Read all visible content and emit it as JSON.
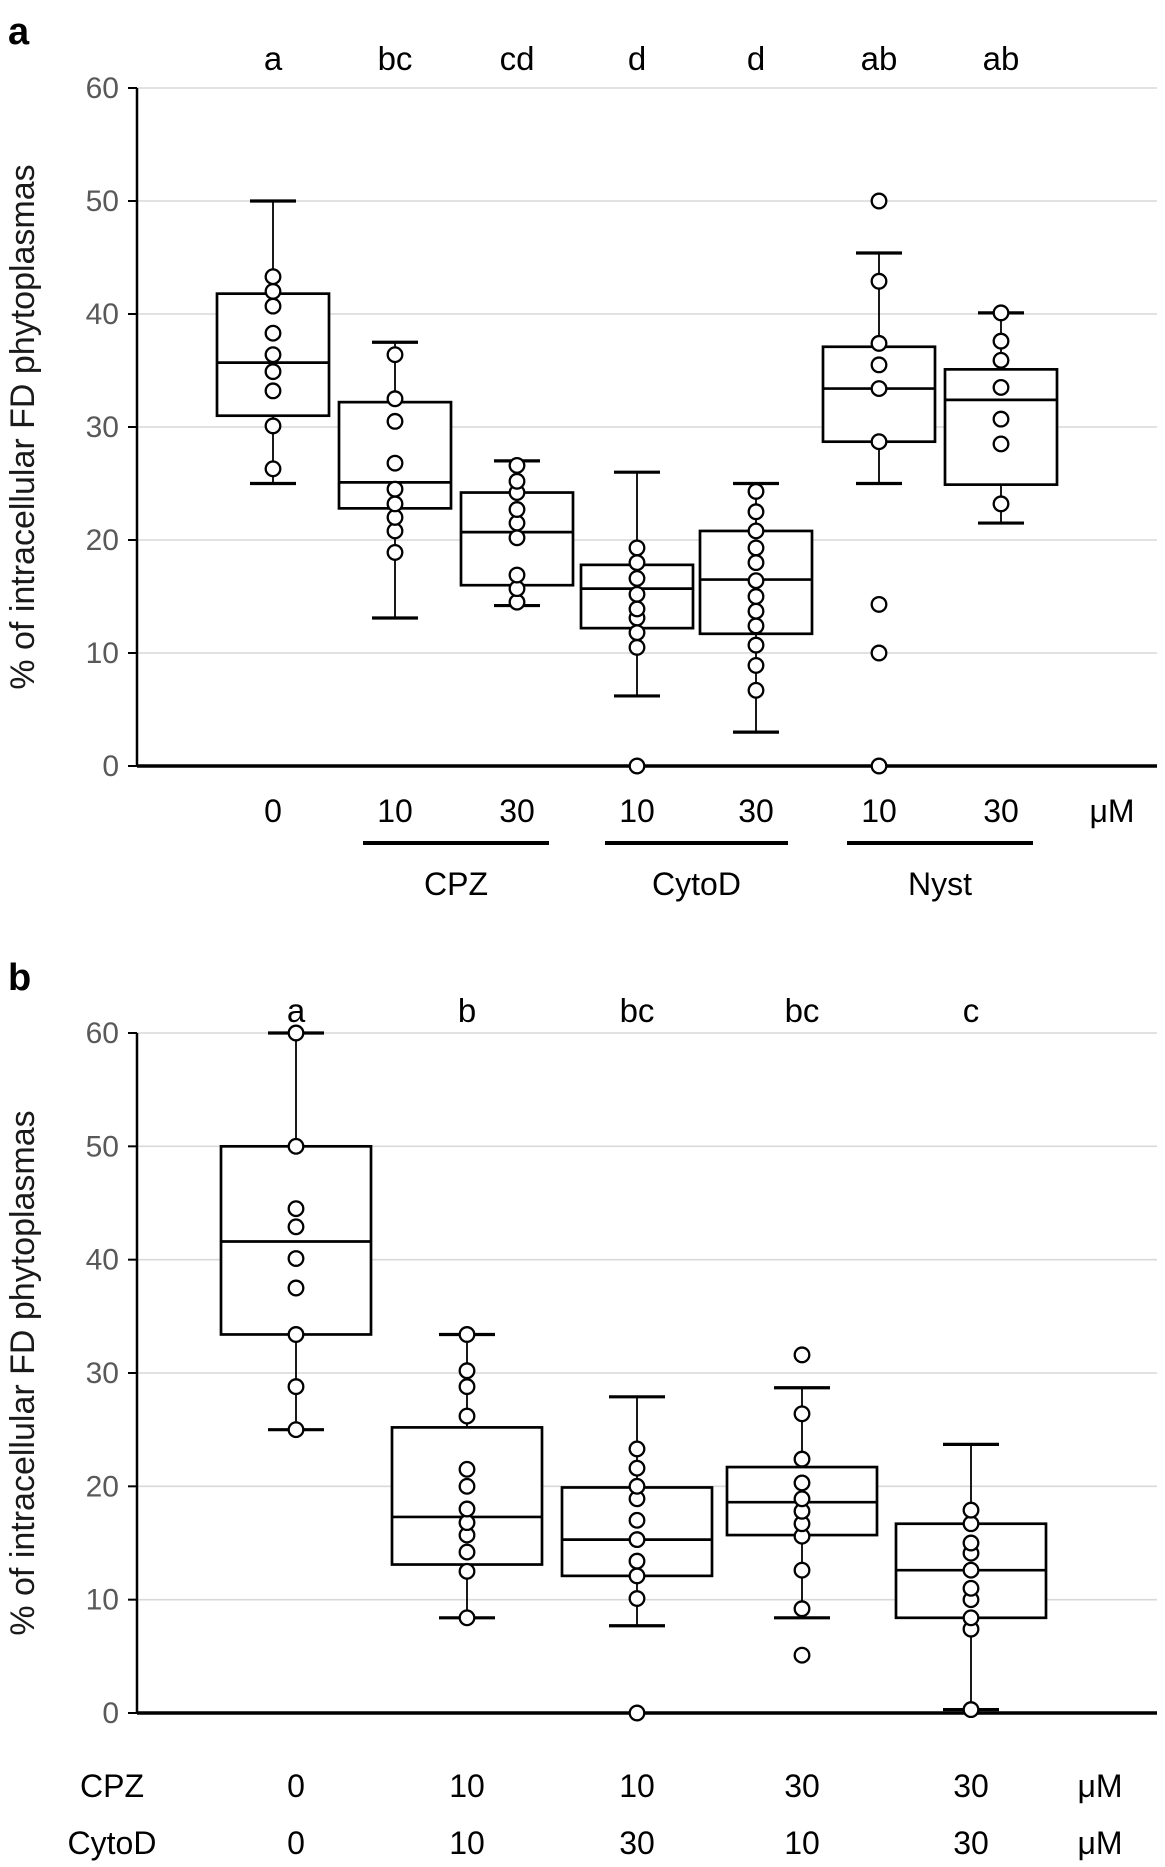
{
  "figure": {
    "y_axis_title": "% of intracellular FD phytoplasmas",
    "unit_label": "μM",
    "colors": {
      "grid": "#d9d9d9",
      "axis": "#000000",
      "box_stroke": "#000000",
      "box_fill": "#ffffff",
      "point_fill": "#ffffff",
      "tick_label": "#595959",
      "text": "#000000"
    }
  },
  "chart_data": [
    {
      "type": "boxplot",
      "panel_letter": "a",
      "ylabel": "% of intracellular FD phytoplasmas",
      "ylim": [
        0,
        60
      ],
      "yticks": [
        0,
        10,
        20,
        30,
        40,
        50,
        60
      ],
      "grid": true,
      "unit": "μM",
      "sig_letters": [
        "a",
        "bc",
        "cd",
        "d",
        "d",
        "ab",
        "ab"
      ],
      "x_labels": [
        "0",
        "10",
        "30",
        "10",
        "30",
        "10",
        "30"
      ],
      "treatments": [
        {
          "label": "CPZ",
          "from": 1,
          "to": 2
        },
        {
          "label": "CytoD",
          "from": 3,
          "to": 4
        },
        {
          "label": "Nyst",
          "from": 5,
          "to": 6
        }
      ],
      "boxes": [
        {
          "low": 25,
          "q1": 31,
          "med": 35.7,
          "q3": 41.8,
          "high": 50,
          "points": [
            26.3,
            30.1,
            33.2,
            34.9,
            36.4,
            38.3,
            40.7,
            42,
            43.3
          ]
        },
        {
          "low": 13.1,
          "q1": 22.8,
          "med": 25.1,
          "q3": 32.2,
          "high": 37.5,
          "points": [
            18.9,
            20.8,
            22,
            23.2,
            24.5,
            26.8,
            30.5,
            32.5,
            36.4
          ]
        },
        {
          "low": 14.2,
          "q1": 16,
          "med": 20.7,
          "q3": 24.2,
          "high": 27,
          "points": [
            14.5,
            15.7,
            16.9,
            20.2,
            21.5,
            22.7,
            24.2,
            25.2,
            26.6
          ]
        },
        {
          "low": 6.2,
          "q1": 12.2,
          "med": 15.7,
          "q3": 17.8,
          "high": 26,
          "points": [
            0,
            10.5,
            11.8,
            13.1,
            13.9,
            15.2,
            16.6,
            18,
            19.3
          ]
        },
        {
          "low": 3,
          "q1": 11.7,
          "med": 16.5,
          "q3": 20.8,
          "high": 25,
          "points": [
            6.7,
            8.9,
            10.7,
            12.4,
            13.7,
            15,
            16.4,
            18,
            19.3,
            20.8,
            22.5,
            24.3
          ]
        },
        {
          "low": 25,
          "q1": 28.7,
          "med": 33.4,
          "q3": 37.1,
          "high": 45.4,
          "points": [
            0,
            10,
            14.3,
            28.7,
            33.4,
            35.5,
            37.4,
            42.9,
            50
          ]
        },
        {
          "low": 21.5,
          "q1": 24.9,
          "med": 32.4,
          "q3": 35.1,
          "high": 40.1,
          "points": [
            23.2,
            28.5,
            30.7,
            33.5,
            35.9,
            37.6,
            40.1
          ]
        }
      ]
    },
    {
      "type": "boxplot",
      "panel_letter": "b",
      "ylabel": "% of intracellular FD phytoplasmas",
      "ylim": [
        0,
        60
      ],
      "yticks": [
        0,
        10,
        20,
        30,
        40,
        50,
        60
      ],
      "grid": true,
      "unit": "μM",
      "sig_letters": [
        "a",
        "b",
        "bc",
        "bc",
        "c"
      ],
      "dose_rows": [
        {
          "label": "CPZ",
          "values": [
            "0",
            "10",
            "10",
            "30",
            "30"
          ]
        },
        {
          "label": "CytoD",
          "values": [
            "0",
            "10",
            "30",
            "10",
            "30"
          ]
        }
      ],
      "boxes": [
        {
          "low": 25,
          "q1": 33.4,
          "med": 41.6,
          "q3": 50,
          "high": 60,
          "points": [
            25,
            28.8,
            33.4,
            37.5,
            40.1,
            42.9,
            44.5,
            50,
            60
          ]
        },
        {
          "low": 8.4,
          "q1": 13.1,
          "med": 17.3,
          "q3": 25.2,
          "high": 33.4,
          "points": [
            8.4,
            12.5,
            14.2,
            15.7,
            16.8,
            18,
            20,
            21.5,
            26.2,
            28.8,
            30.2,
            33.4
          ]
        },
        {
          "low": 7.7,
          "q1": 12.1,
          "med": 15.3,
          "q3": 19.9,
          "high": 27.9,
          "points": [
            0,
            10.1,
            12.1,
            13.4,
            15.3,
            17,
            18.9,
            20,
            21.6,
            23.3
          ]
        },
        {
          "low": 8.4,
          "q1": 15.7,
          "med": 18.6,
          "q3": 21.7,
          "high": 28.7,
          "points": [
            5.1,
            9.2,
            12.6,
            15.6,
            16.7,
            17.8,
            18.9,
            20.3,
            22.4,
            26.4,
            31.6
          ]
        },
        {
          "low": 0.3,
          "q1": 8.4,
          "med": 12.6,
          "q3": 16.7,
          "high": 23.7,
          "points": [
            0.3,
            7.4,
            8.4,
            10,
            11,
            12.6,
            14.1,
            15,
            16.7,
            17.9
          ]
        }
      ]
    }
  ]
}
